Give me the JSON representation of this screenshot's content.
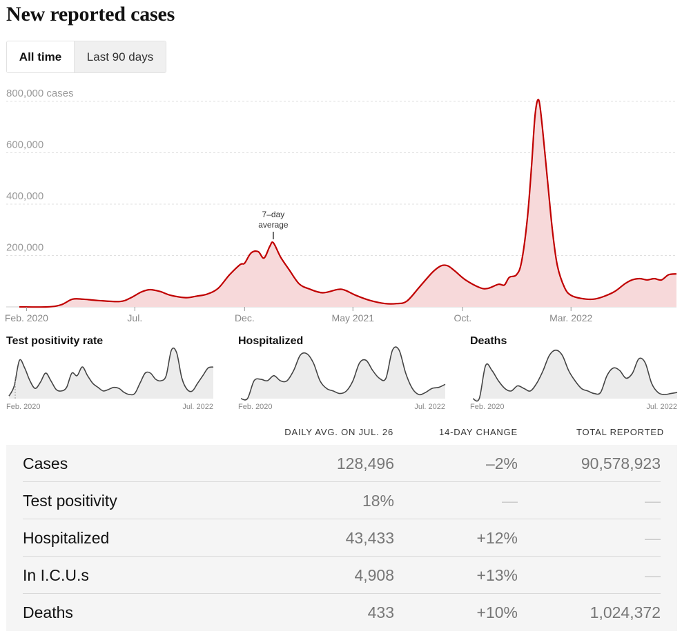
{
  "title": "New reported cases",
  "toggle": {
    "all_time": "All time",
    "last_90": "Last 90 days"
  },
  "colors": {
    "cases_line": "#c00000",
    "cases_fill": "#f7d9da",
    "small_line": "#444444",
    "small_fill": "#ececec"
  },
  "chart_data": [
    {
      "type": "area",
      "title": "New reported cases",
      "series_note": "7-day\naverage",
      "annotation": [
        "7–day",
        "average"
      ],
      "ylim": [
        0,
        800000
      ],
      "yticks": [
        {
          "value": 200000,
          "label": "200,000"
        },
        {
          "value": 400000,
          "label": "400,000"
        },
        {
          "value": 600000,
          "label": "600,000"
        },
        {
          "value": 800000,
          "label": "800,000 cases"
        }
      ],
      "xlim": [
        "2020-01-22",
        "2022-07-26"
      ],
      "xticks": [
        {
          "date": "2020-02-01",
          "label": "Feb. 2020"
        },
        {
          "date": "2020-07-01",
          "label": "Jul."
        },
        {
          "date": "2020-12-01",
          "label": "Dec."
        },
        {
          "date": "2021-05-01",
          "label": "May 2021"
        },
        {
          "date": "2021-10-01",
          "label": "Oct."
        },
        {
          "date": "2022-03-01",
          "label": "Mar. 2022"
        }
      ],
      "grid": true,
      "points": [
        [
          "2020-01-22",
          0
        ],
        [
          "2020-03-01",
          0
        ],
        [
          "2020-03-20",
          8000
        ],
        [
          "2020-04-05",
          30000
        ],
        [
          "2020-04-20",
          30000
        ],
        [
          "2020-05-10",
          25000
        ],
        [
          "2020-06-10",
          21000
        ],
        [
          "2020-06-25",
          35000
        ],
        [
          "2020-07-10",
          58000
        ],
        [
          "2020-07-22",
          67000
        ],
        [
          "2020-08-05",
          60000
        ],
        [
          "2020-08-20",
          45000
        ],
        [
          "2020-09-10",
          36000
        ],
        [
          "2020-09-25",
          42000
        ],
        [
          "2020-10-10",
          50000
        ],
        [
          "2020-10-25",
          72000
        ],
        [
          "2020-11-10",
          125000
        ],
        [
          "2020-11-25",
          165000
        ],
        [
          "2020-12-01",
          170000
        ],
        [
          "2020-12-10",
          210000
        ],
        [
          "2020-12-20",
          215000
        ],
        [
          "2020-12-28",
          190000
        ],
        [
          "2021-01-05",
          235000
        ],
        [
          "2021-01-10",
          250000
        ],
        [
          "2021-01-20",
          195000
        ],
        [
          "2021-02-01",
          145000
        ],
        [
          "2021-02-15",
          90000
        ],
        [
          "2021-03-01",
          70000
        ],
        [
          "2021-03-20",
          55000
        ],
        [
          "2021-04-10",
          68000
        ],
        [
          "2021-04-20",
          65000
        ],
        [
          "2021-05-05",
          45000
        ],
        [
          "2021-05-25",
          25000
        ],
        [
          "2021-06-15",
          13000
        ],
        [
          "2021-07-01",
          13000
        ],
        [
          "2021-07-15",
          22000
        ],
        [
          "2021-08-01",
          75000
        ],
        [
          "2021-08-20",
          135000
        ],
        [
          "2021-09-01",
          160000
        ],
        [
          "2021-09-10",
          160000
        ],
        [
          "2021-09-20",
          140000
        ],
        [
          "2021-10-05",
          105000
        ],
        [
          "2021-10-25",
          75000
        ],
        [
          "2021-11-05",
          72000
        ],
        [
          "2021-11-20",
          88000
        ],
        [
          "2021-11-28",
          85000
        ],
        [
          "2021-12-05",
          115000
        ],
        [
          "2021-12-15",
          125000
        ],
        [
          "2021-12-22",
          175000
        ],
        [
          "2021-12-30",
          340000
        ],
        [
          "2022-01-05",
          550000
        ],
        [
          "2022-01-10",
          750000
        ],
        [
          "2022-01-15",
          805000
        ],
        [
          "2022-01-20",
          700000
        ],
        [
          "2022-01-27",
          500000
        ],
        [
          "2022-02-03",
          300000
        ],
        [
          "2022-02-10",
          160000
        ],
        [
          "2022-02-20",
          75000
        ],
        [
          "2022-03-01",
          45000
        ],
        [
          "2022-03-15",
          33000
        ],
        [
          "2022-04-01",
          30000
        ],
        [
          "2022-04-15",
          40000
        ],
        [
          "2022-05-01",
          60000
        ],
        [
          "2022-05-15",
          90000
        ],
        [
          "2022-05-25",
          105000
        ],
        [
          "2022-06-05",
          110000
        ],
        [
          "2022-06-15",
          105000
        ],
        [
          "2022-06-25",
          110000
        ],
        [
          "2022-07-05",
          105000
        ],
        [
          "2022-07-15",
          125000
        ],
        [
          "2022-07-26",
          128496
        ]
      ]
    },
    {
      "type": "area",
      "title": "Test positivity rate",
      "xlabels": [
        "Feb. 2020",
        "Jul. 2022"
      ],
      "values": [
        0.05,
        0.25,
        0.75,
        0.6,
        0.35,
        0.2,
        0.32,
        0.5,
        0.35,
        0.18,
        0.15,
        0.22,
        0.5,
        0.45,
        0.62,
        0.45,
        0.3,
        0.22,
        0.15,
        0.18,
        0.22,
        0.2,
        0.12,
        0.08,
        0.1,
        0.3,
        0.5,
        0.5,
        0.38,
        0.35,
        0.45,
        0.95,
        0.9,
        0.4,
        0.18,
        0.15,
        0.3,
        0.45,
        0.6,
        0.62
      ]
    },
    {
      "type": "area",
      "title": "Hospitalized",
      "xlabels": [
        "Feb. 2020",
        "Jul. 2022"
      ],
      "values": [
        0.0,
        0.0,
        0.35,
        0.38,
        0.35,
        0.45,
        0.35,
        0.35,
        0.55,
        0.85,
        0.88,
        0.7,
        0.35,
        0.2,
        0.15,
        0.1,
        0.15,
        0.35,
        0.7,
        0.75,
        0.55,
        0.4,
        0.4,
        0.95,
        0.95,
        0.5,
        0.2,
        0.08,
        0.12,
        0.2,
        0.22,
        0.28
      ]
    },
    {
      "type": "area",
      "title": "Deaths",
      "xlabels": [
        "Feb. 2020",
        "Jul. 2022"
      ],
      "values": [
        0.0,
        0.0,
        0.65,
        0.55,
        0.35,
        0.2,
        0.15,
        0.25,
        0.2,
        0.15,
        0.3,
        0.55,
        0.85,
        0.95,
        0.85,
        0.55,
        0.35,
        0.2,
        0.15,
        0.1,
        0.12,
        0.45,
        0.6,
        0.55,
        0.4,
        0.5,
        0.78,
        0.7,
        0.3,
        0.12,
        0.08,
        0.1,
        0.12
      ]
    }
  ],
  "table": {
    "headers": {
      "daily": "DAILY AVG. ON JUL. 26",
      "change": "14-DAY CHANGE",
      "total": "TOTAL REPORTED"
    },
    "rows": [
      {
        "label": "Cases",
        "daily": "128,496",
        "change": "–2%",
        "total": "90,578,923"
      },
      {
        "label": "Test positivity",
        "daily": "18%",
        "change": "—",
        "total": "—"
      },
      {
        "label": "Hospitalized",
        "daily": "43,433",
        "change": "+12%",
        "total": "—"
      },
      {
        "label": "In I.C.U.s",
        "daily": "4,908",
        "change": "+13%",
        "total": "—"
      },
      {
        "label": "Deaths",
        "daily": "433",
        "change": "+10%",
        "total": "1,024,372"
      }
    ]
  }
}
